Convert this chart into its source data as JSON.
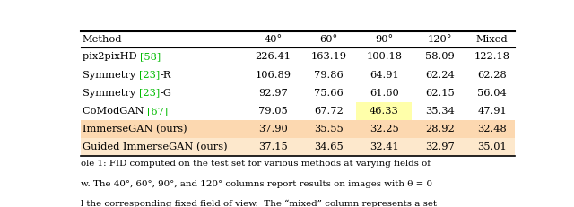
{
  "columns": [
    "Method",
    "40°",
    "60°",
    "90°",
    "120°",
    "Mixed"
  ],
  "rows": [
    {
      "method_parts": [
        {
          "text": "pix2pixHD ",
          "color": "black"
        },
        {
          "text": "[58]",
          "color": "#00bb00"
        },
        {
          "text": "",
          "color": "black"
        }
      ],
      "values": [
        "226.41",
        "163.19",
        "100.18",
        "58.09",
        "122.18"
      ],
      "cell_colors": [
        "none",
        "none",
        "none",
        "none",
        "none"
      ]
    },
    {
      "method_parts": [
        {
          "text": "Symmetry ",
          "color": "black"
        },
        {
          "text": "[23]",
          "color": "#00bb00"
        },
        {
          "text": "-R",
          "color": "black"
        }
      ],
      "values": [
        "106.89",
        "79.86",
        "64.91",
        "62.24",
        "62.28"
      ],
      "cell_colors": [
        "none",
        "none",
        "none",
        "none",
        "none"
      ]
    },
    {
      "method_parts": [
        {
          "text": "Symmetry ",
          "color": "black"
        },
        {
          "text": "[23]",
          "color": "#00bb00"
        },
        {
          "text": "-G",
          "color": "black"
        }
      ],
      "values": [
        "92.97",
        "75.66",
        "61.60",
        "62.15",
        "56.04"
      ],
      "cell_colors": [
        "none",
        "none",
        "none",
        "none",
        "none"
      ]
    },
    {
      "method_parts": [
        {
          "text": "CoModGAN ",
          "color": "black"
        },
        {
          "text": "[67]",
          "color": "#00bb00"
        },
        {
          "text": "",
          "color": "black"
        }
      ],
      "values": [
        "79.05",
        "67.72",
        "46.33",
        "35.34",
        "47.91"
      ],
      "cell_colors": [
        "none",
        "none",
        "#ffffaa",
        "none",
        "none"
      ]
    },
    {
      "method_parts": [
        {
          "text": "ImmerseGAN (ours)",
          "color": "black"
        },
        {
          "text": "",
          "color": "black"
        },
        {
          "text": "",
          "color": "black"
        }
      ],
      "values": [
        "37.90",
        "35.55",
        "32.25",
        "28.92",
        "32.48"
      ],
      "cell_colors": [
        "#fcd8b0",
        "#fcd8b0",
        "#fcd8b0",
        "#fcd8b0",
        "#fcd8b0"
      ]
    },
    {
      "method_parts": [
        {
          "text": "Guided ImmerseGAN (ours)",
          "color": "black"
        },
        {
          "text": "",
          "color": "black"
        },
        {
          "text": "",
          "color": "black"
        }
      ],
      "values": [
        "37.15",
        "34.65",
        "32.41",
        "32.97",
        "35.01"
      ],
      "cell_colors": [
        "#fde8cc",
        "#fde8cc",
        "#fdeedd",
        "#fdeedd",
        "#fdeedd"
      ]
    }
  ],
  "caption_lines": [
    "ole 1: FID computed on the test set for various methods at varying fields of",
    "w. The 40°, 60°, 90°, and 120° columns report results on images with θ = 0",
    "l the corresponding fixed field of view.  The “mixed” column represents a set"
  ],
  "figsize": [
    6.4,
    2.31
  ],
  "dpi": 100
}
